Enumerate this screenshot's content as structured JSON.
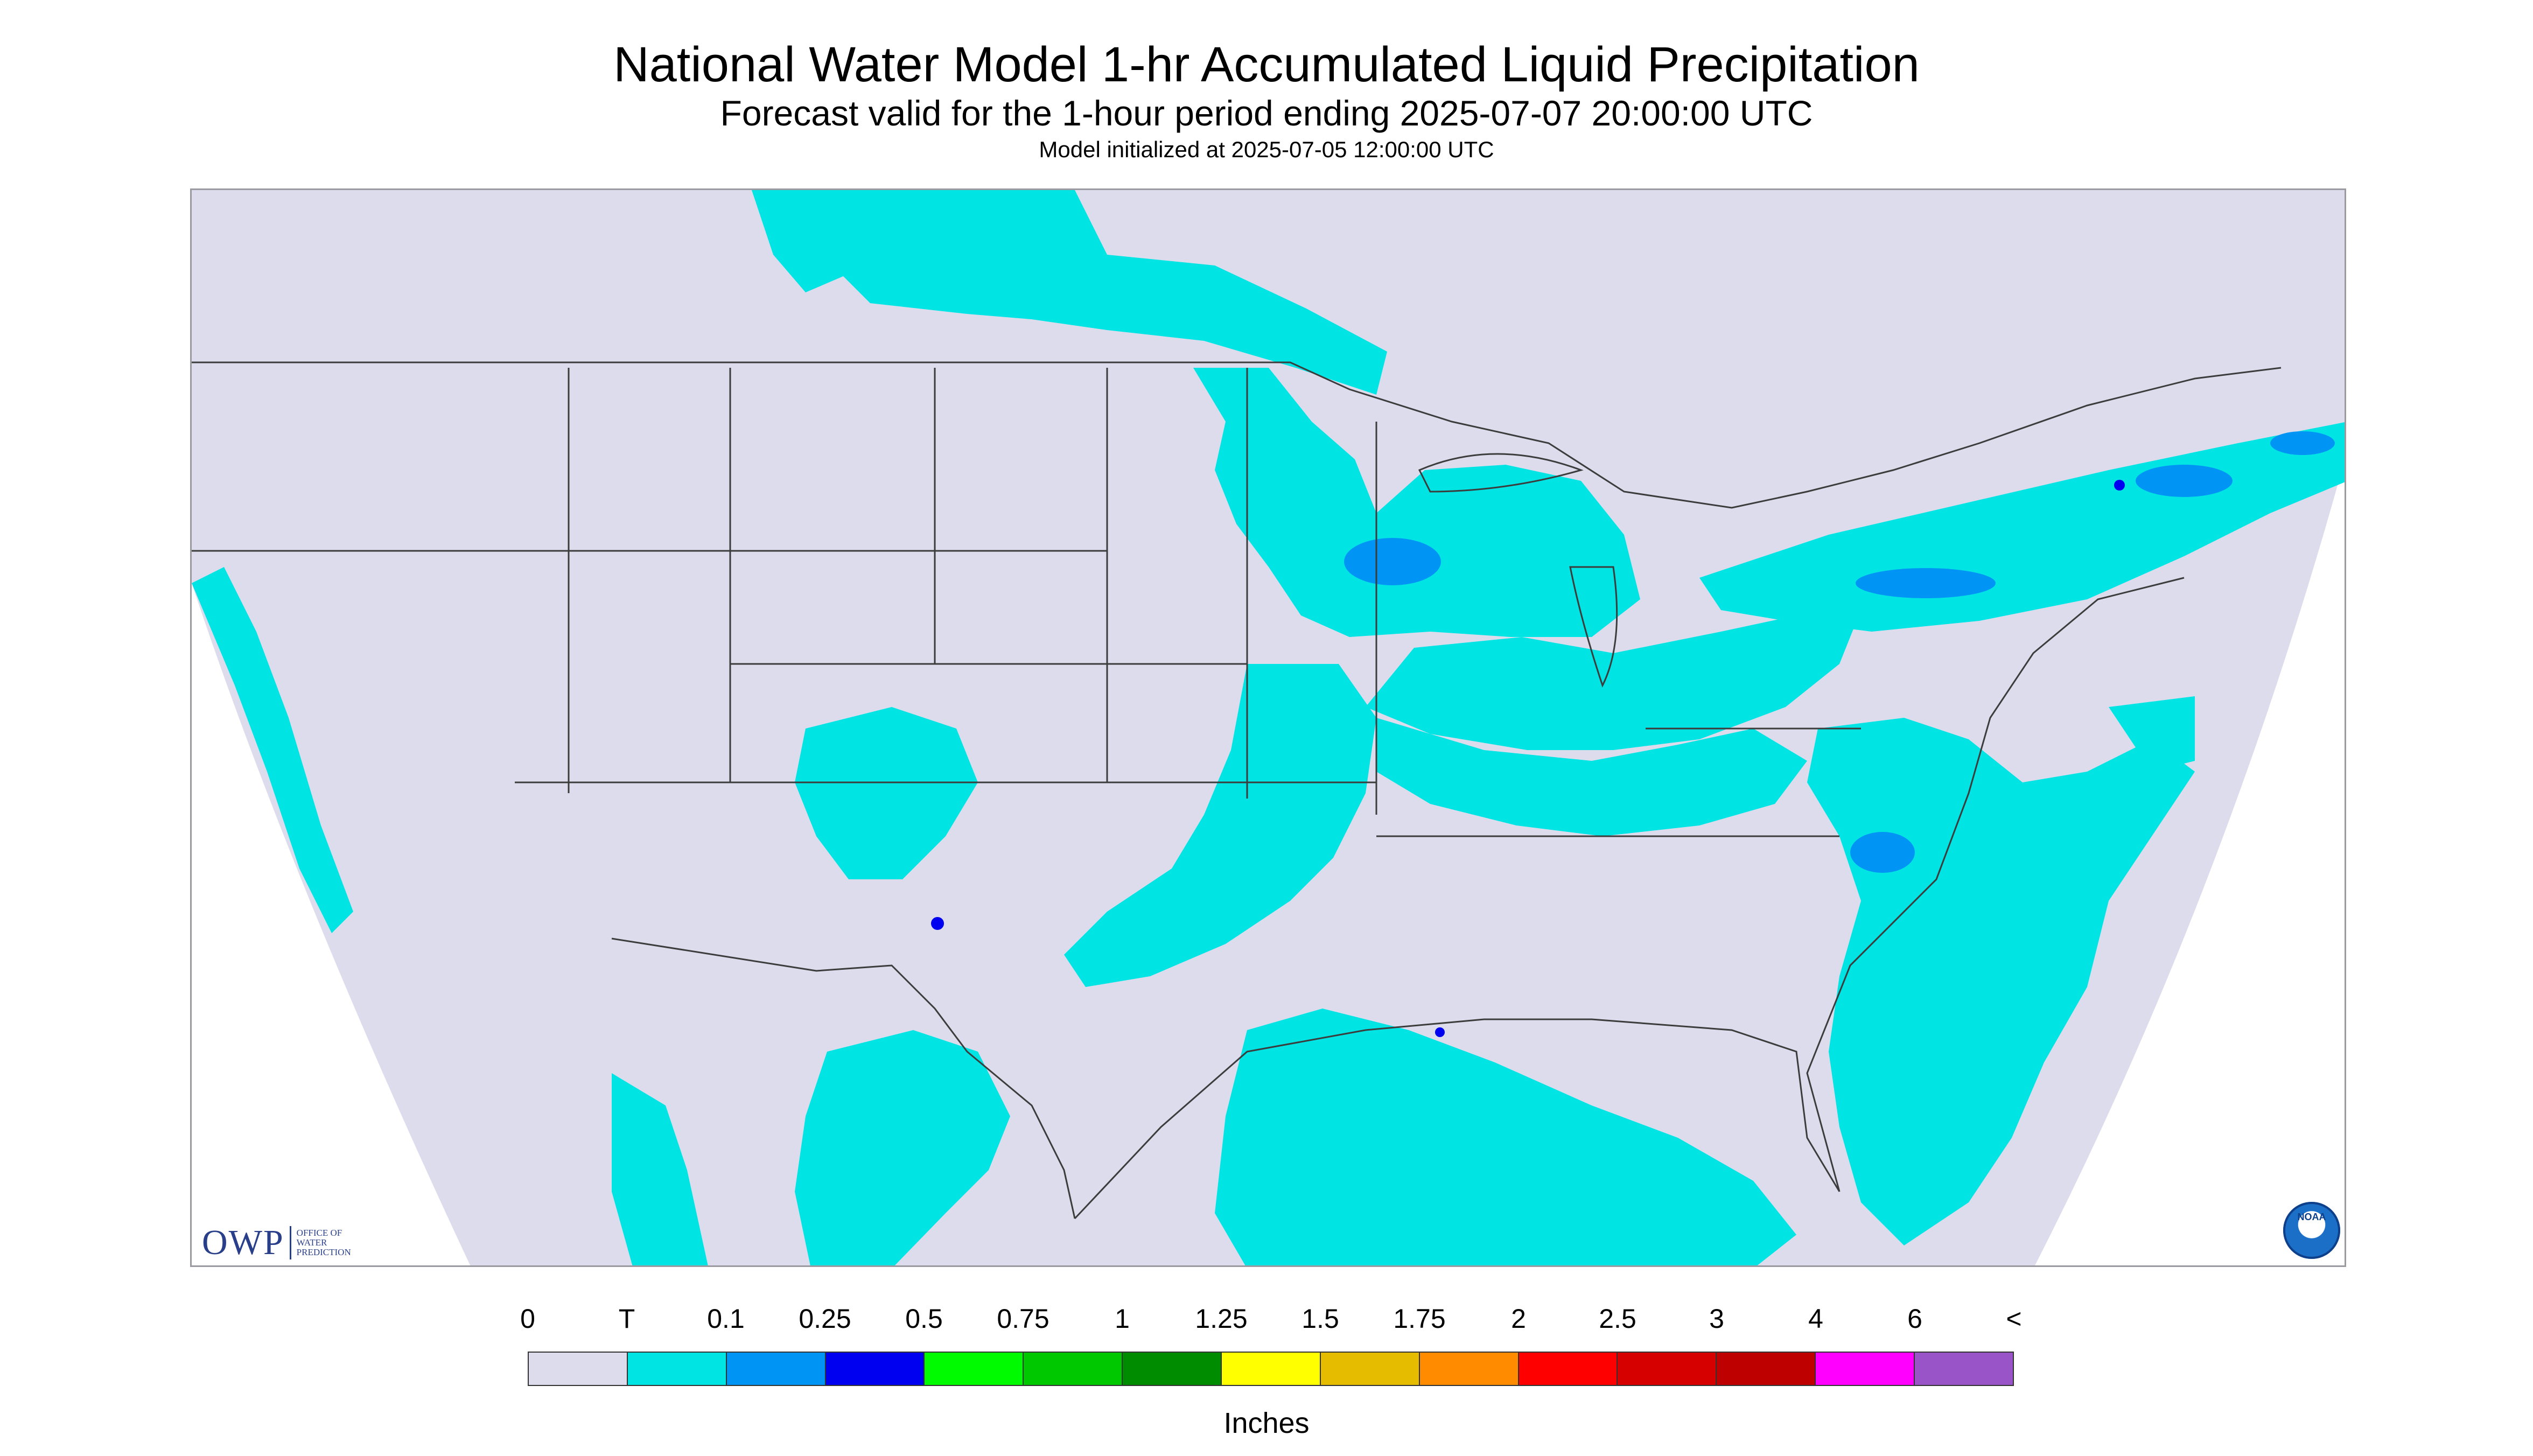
{
  "title": "National Water Model 1-hr Accumulated Liquid Precipitation",
  "subtitle": "Forecast valid for the 1-hour period ending 2025-07-07 20:00:00 UTC",
  "init_line": "Model initialized at 2025-07-05 12:00:00 UTC",
  "logos": {
    "owp_text": "OWP",
    "owp_subtext_1": "OFFICE OF",
    "owp_subtext_2": "WATER",
    "owp_subtext_3": "PREDICTION",
    "noaa_text": "NOAA"
  },
  "legend": {
    "tick_labels": [
      "0",
      "T",
      "0.1",
      "0.25",
      "0.5",
      "0.75",
      "1",
      "1.25",
      "1.5",
      "1.75",
      "2",
      "2.5",
      "3",
      "4",
      "6",
      "<"
    ],
    "colors": [
      "#dcdced",
      "#00e4e4",
      "#0095f5",
      "#0000f0",
      "#00fa00",
      "#00c800",
      "#008c00",
      "#ffff00",
      "#e6bc00",
      "#ff8c00",
      "#ff0000",
      "#d60000",
      "#bf0000",
      "#ff00ff",
      "#9955c8"
    ],
    "units": "Inches"
  },
  "map": {
    "background_color": "#dcdced",
    "precip_trace_color": "#00e4e4",
    "precip_light_color": "#0095f5",
    "precip_moderate_color": "#0000f0",
    "boundary_color": "#3c3c3c"
  }
}
